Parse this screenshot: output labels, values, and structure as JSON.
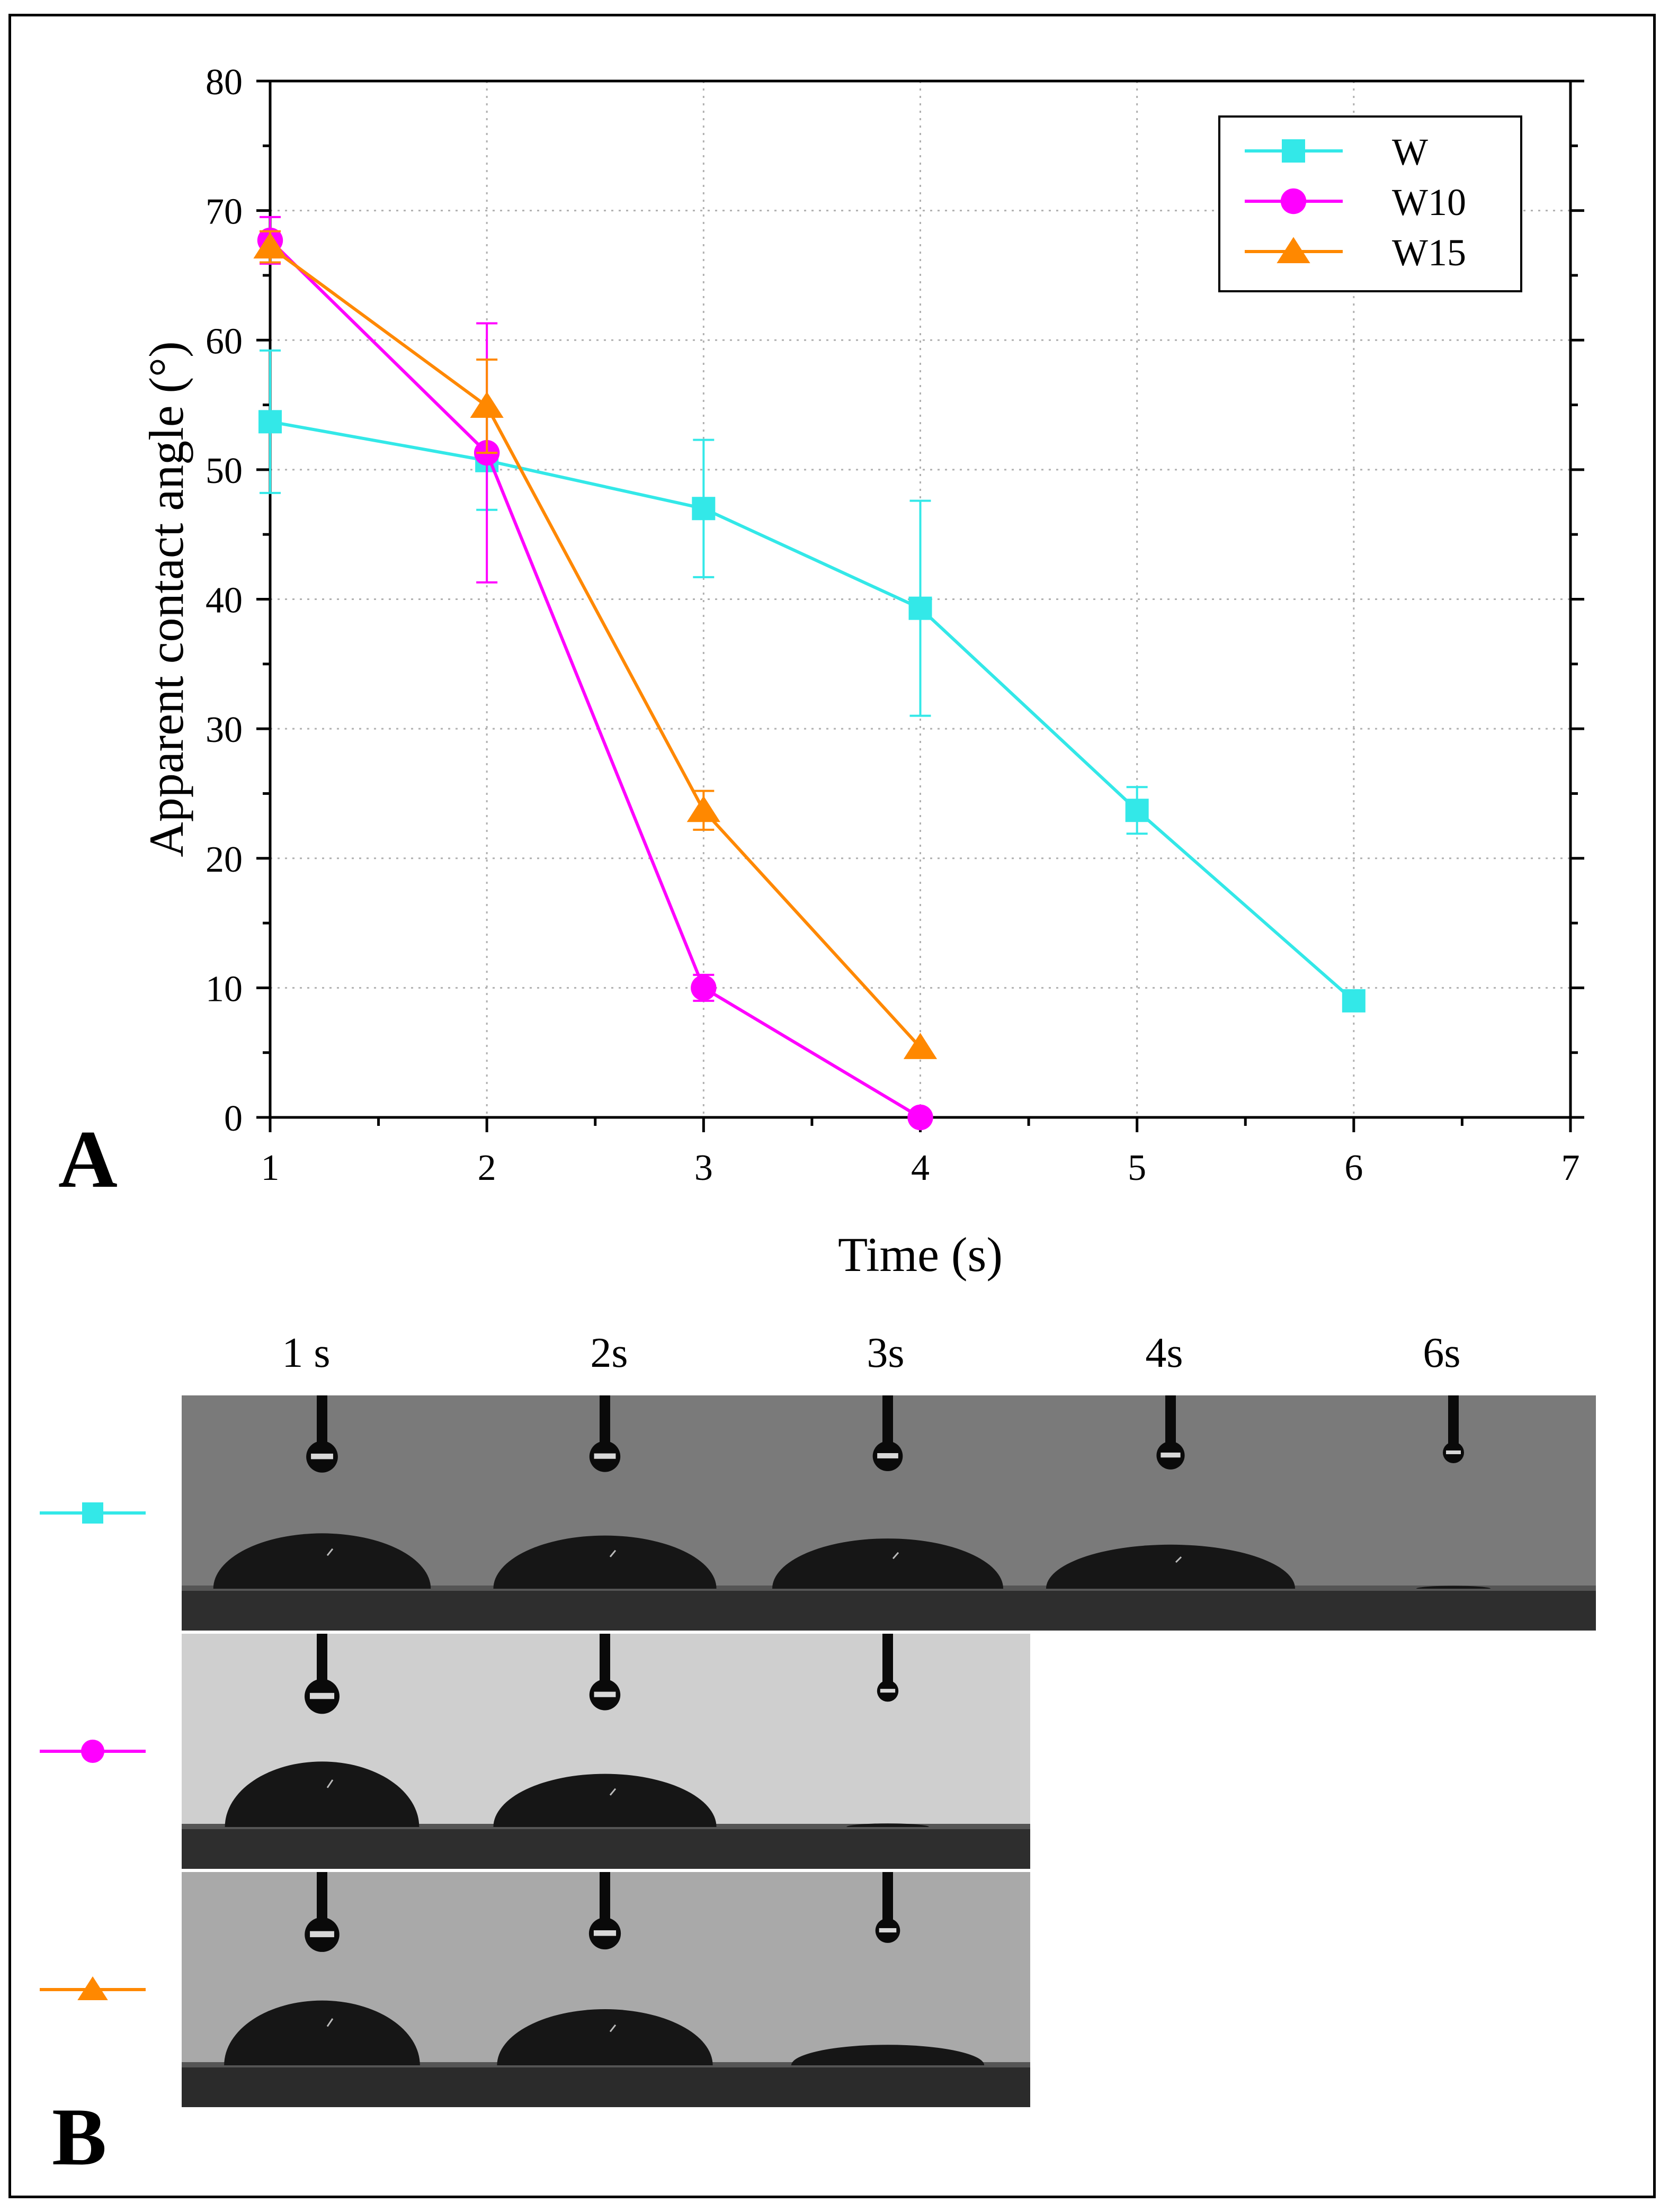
{
  "figure": {
    "panel_a_label": "A",
    "panel_b_label": "B"
  },
  "chart_data": {
    "type": "line",
    "title": "",
    "xlabel": "Time (s)",
    "ylabel": "Apparent contact angle (°)",
    "xlim": [
      1,
      7
    ],
    "ylim": [
      0,
      80
    ],
    "x_ticks": [
      1,
      2,
      3,
      4,
      5,
      6,
      7
    ],
    "y_ticks": [
      0,
      10,
      20,
      30,
      40,
      50,
      60,
      70,
      80
    ],
    "grid": true,
    "legend_position": "top-right",
    "series": [
      {
        "name": "W",
        "color": "#33e8e8",
        "marker": "square",
        "x": [
          1,
          2,
          3,
          4,
          5,
          6
        ],
        "y": [
          53.7,
          50.7,
          47.0,
          39.3,
          23.7,
          9.0
        ],
        "err": [
          5.5,
          3.8,
          5.3,
          8.3,
          1.8,
          0
        ]
      },
      {
        "name": "W10",
        "color": "#ff00ff",
        "marker": "circle",
        "x": [
          1,
          2,
          3,
          4
        ],
        "y": [
          67.7,
          51.3,
          10.0,
          0.0
        ],
        "err": [
          1.8,
          10.0,
          1.0,
          0
        ]
      },
      {
        "name": "W15",
        "color": "#ff8800",
        "marker": "triangle",
        "x": [
          1,
          2,
          3,
          4
        ],
        "y": [
          67.2,
          54.9,
          23.7,
          5.4
        ],
        "err": [
          1.2,
          3.6,
          1.5,
          0
        ]
      }
    ]
  },
  "images": {
    "column_labels": [
      "1 s",
      "2s",
      "3s",
      "4s",
      "6s"
    ],
    "rows": [
      {
        "series": "W",
        "marker": "square",
        "color": "#33e8e8",
        "background": "#7a7a7a",
        "substrate": "#2e2e2e",
        "frames": [
          {
            "contact_angle": 54
          },
          {
            "contact_angle": 51
          },
          {
            "contact_angle": 47
          },
          {
            "contact_angle": 39
          },
          {
            "contact_angle": 9
          }
        ]
      },
      {
        "series": "W10",
        "marker": "circle",
        "color": "#ff00ff",
        "background": "#cfcfcf",
        "substrate": "#2e2e2e",
        "frames": [
          {
            "contact_angle": 68
          },
          {
            "contact_angle": 51
          },
          {
            "contact_angle": 10
          }
        ]
      },
      {
        "series": "W15",
        "marker": "triangle",
        "color": "#ff8800",
        "background": "#a9a9a9",
        "substrate": "#2b2b2b",
        "frames": [
          {
            "contact_angle": 67
          },
          {
            "contact_angle": 55
          },
          {
            "contact_angle": 24
          }
        ]
      }
    ]
  }
}
